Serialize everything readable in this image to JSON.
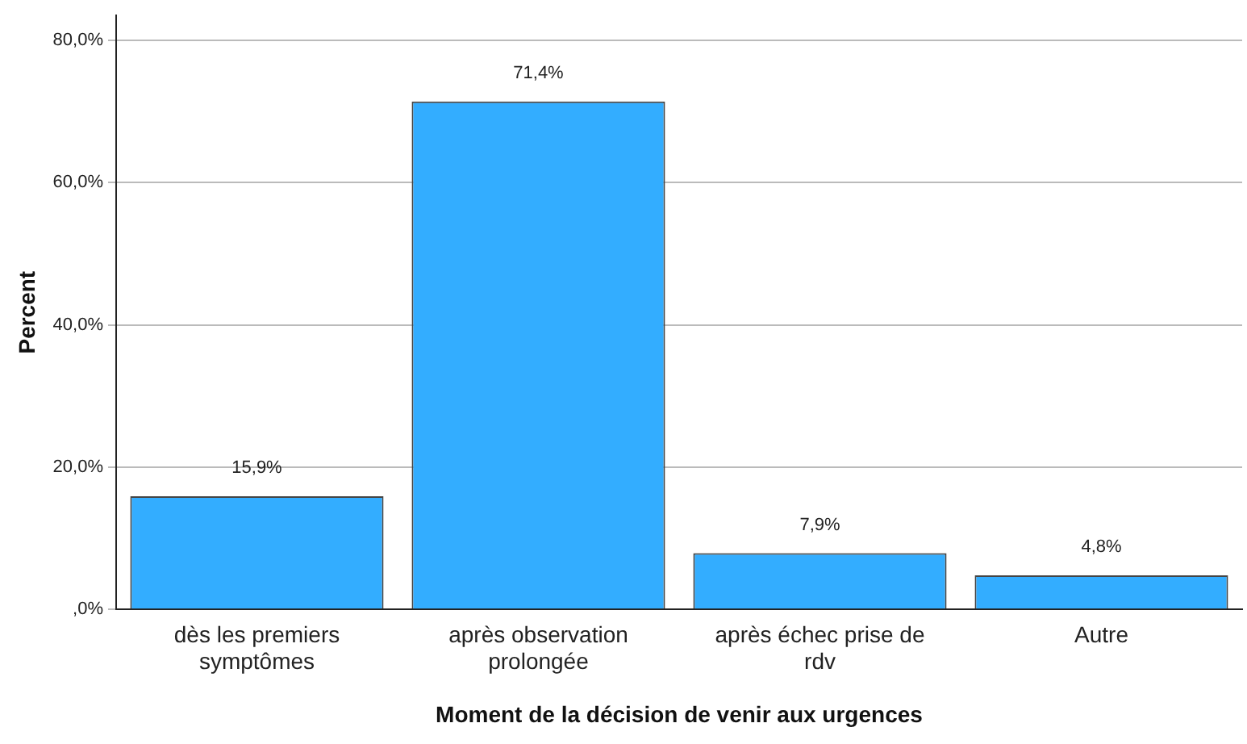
{
  "chart_data": {
    "type": "bar",
    "xlabel": "Moment de la décision de venir aux urgences",
    "ylabel": "Percent",
    "categories": [
      "dès les premiers symptômes",
      "après observation prolongée",
      "après échec prise de rdv",
      "Autre"
    ],
    "values": [
      15.9,
      71.4,
      7.9,
      4.8
    ],
    "value_labels": [
      "15,9%",
      "71,4%",
      "7,9%",
      "4,8%"
    ],
    "color": "#33adff",
    "ylim": [
      0,
      83.5
    ],
    "yticks": [
      {
        "value": 0,
        "label": ",0%"
      },
      {
        "value": 20,
        "label": "20,0%"
      },
      {
        "value": 40,
        "label": "40,0%"
      },
      {
        "value": 60,
        "label": "60,0%"
      },
      {
        "value": 80,
        "label": "80,0%"
      }
    ],
    "grid": "y",
    "legend": false
  }
}
